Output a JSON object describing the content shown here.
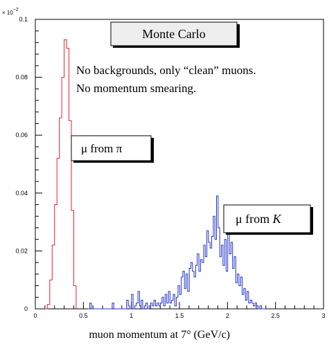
{
  "chart_data": {
    "type": "histogram",
    "title": "Monte Carlo",
    "xlabel": "muon momentum at 7°   (GeV/c)",
    "ylabel": "",
    "y_multiplier_label": "× 10",
    "y_multiplier_exponent": "−2",
    "xlim": [
      0,
      3
    ],
    "ylim": [
      0,
      0.1
    ],
    "xticks": [
      "0",
      "0.5",
      "1",
      "1.5",
      "2",
      "2.5",
      "3"
    ],
    "yticks": [
      "0",
      "0.02",
      "0.04",
      "0.06",
      "0.08",
      "0.1"
    ],
    "annotations": {
      "note_line1": "No backgrounds, only “clean” muons.",
      "note_line2": "No momentum smearing."
    },
    "series": [
      {
        "name": "μ from π",
        "color": "#e8202a",
        "bin_width": 0.025,
        "x_start": 0.1,
        "values": [
          0.0,
          0.0015,
          0.01,
          0.022,
          0.036,
          0.052,
          0.066,
          0.08,
          0.093,
          0.09,
          0.065,
          0.034,
          0.008
        ]
      },
      {
        "name": "μ from K",
        "color": "#2030c8",
        "bin_width": 0.0167,
        "x_start": 0.55,
        "values": [
          0.0,
          0.002,
          0.0,
          0.0,
          0.0,
          0.0,
          0.0,
          0.0,
          0.0,
          0.0,
          0.0,
          0.0,
          0.0,
          0.0,
          0.0,
          0.002,
          0.0,
          0.0,
          0.0,
          0.0,
          0.0,
          0.0,
          0.0,
          0.0,
          0.003,
          0.001,
          0.0,
          0.005,
          0.0,
          0.001,
          0.002,
          0.006,
          0.001,
          0.003,
          0.0,
          0.001,
          0.002,
          0.0,
          0.001,
          0.002,
          0.001,
          0.003,
          0.001,
          0.002,
          0.001,
          0.002,
          0.004,
          0.001,
          0.005,
          0.002,
          0.006,
          0.002,
          0.003,
          0.005,
          0.001,
          0.004,
          0.008,
          0.005,
          0.011,
          0.013,
          0.007,
          0.012,
          0.006,
          0.014,
          0.016,
          0.013,
          0.011,
          0.015,
          0.019,
          0.013,
          0.017,
          0.016,
          0.022,
          0.018,
          0.027,
          0.023,
          0.021,
          0.025,
          0.032,
          0.024,
          0.039,
          0.028,
          0.018,
          0.022,
          0.015,
          0.024,
          0.013,
          0.026,
          0.019,
          0.023,
          0.014,
          0.018,
          0.009,
          0.012,
          0.008,
          0.011,
          0.005,
          0.007,
          0.003,
          0.006,
          0.002,
          0.003,
          0.002,
          0.001,
          0.002,
          0.001,
          0.0,
          0.001,
          0.0,
          0.0,
          0.0
        ]
      }
    ]
  },
  "labels": {
    "pi_label": "μ from π",
    "k_label_prefix": "μ from ",
    "k_label_italic": "K"
  }
}
